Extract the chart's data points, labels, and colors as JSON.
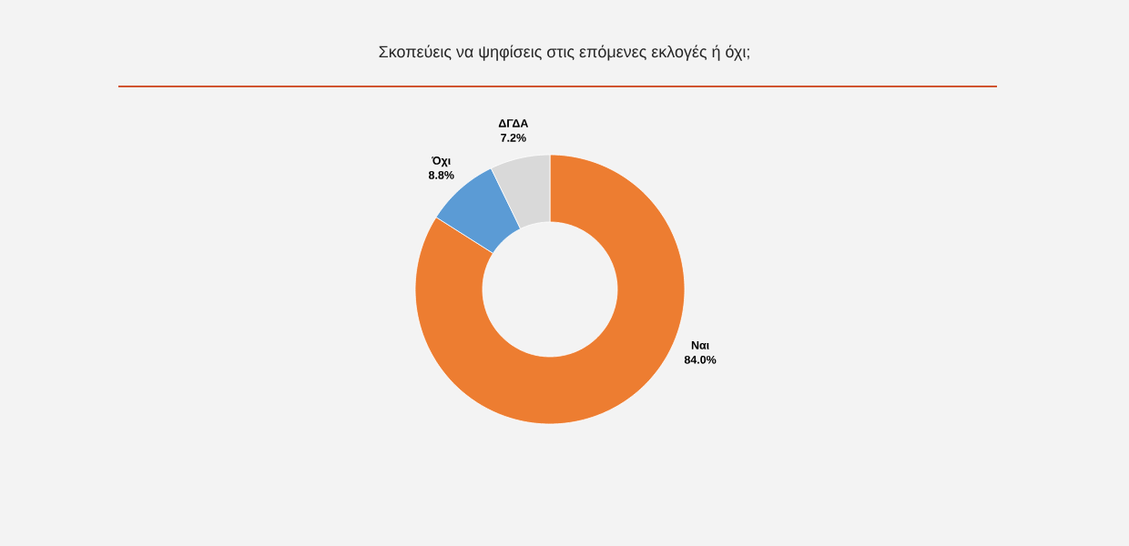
{
  "chart_data": {
    "type": "donut",
    "title": "Σκοπεύεις να ψηφίσεις στις επόμενες εκλογές ή όχι;",
    "categories": [
      "Ναι",
      "Όχι",
      "ΔΓΔΑ"
    ],
    "values": [
      84.0,
      8.8,
      7.2
    ],
    "colors": [
      "#ed7d31",
      "#5b9bd5",
      "#d9d9d9"
    ],
    "value_labels": [
      "84.0%",
      "8.8%",
      "7.2%"
    ]
  }
}
